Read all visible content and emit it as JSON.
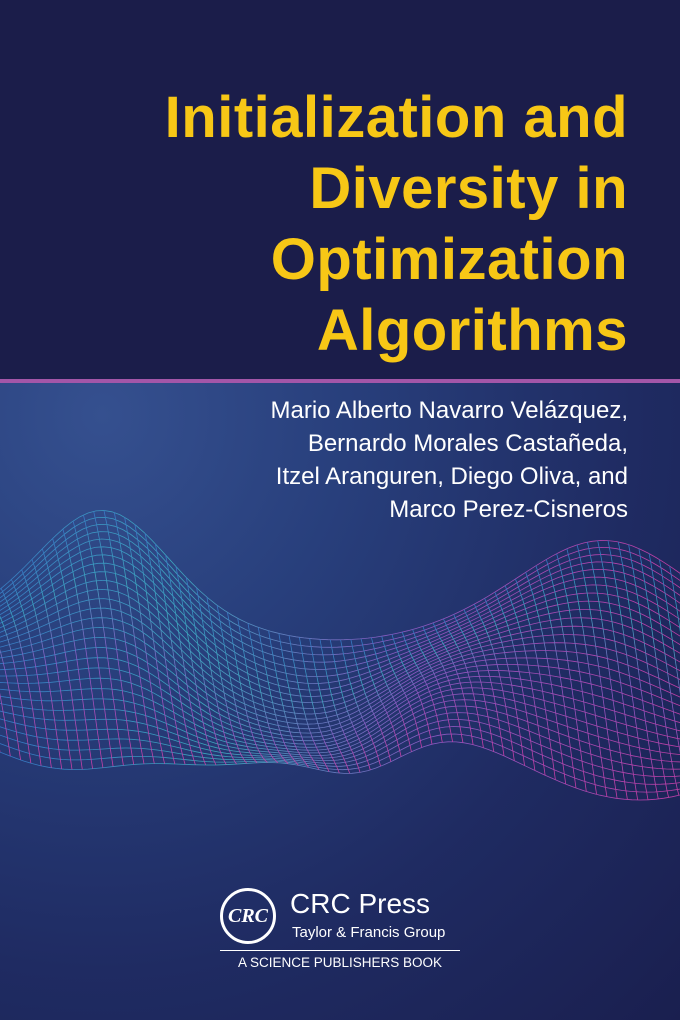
{
  "title_lines": [
    "Initialization and",
    "Diversity in",
    "Optimization",
    "Algorithms"
  ],
  "authors_lines": [
    "Mario Alberto Navarro Velázquez,",
    "Bernardo Morales Castañeda,",
    "Itzel Aranguren, Diego Oliva, and",
    "Marco Perez-Cisneros"
  ],
  "publisher": {
    "logo_text": "CRC",
    "name": "CRC Press",
    "group": "Taylor & Francis Group",
    "imprint": "A SCIENCE PUBLISHERS BOOK"
  },
  "colors": {
    "title": "#f7c716",
    "background": "#1b1d4a",
    "rule": "#a356a8",
    "mesh_start": "#3aa8d8",
    "mesh_end": "#e040b0"
  }
}
